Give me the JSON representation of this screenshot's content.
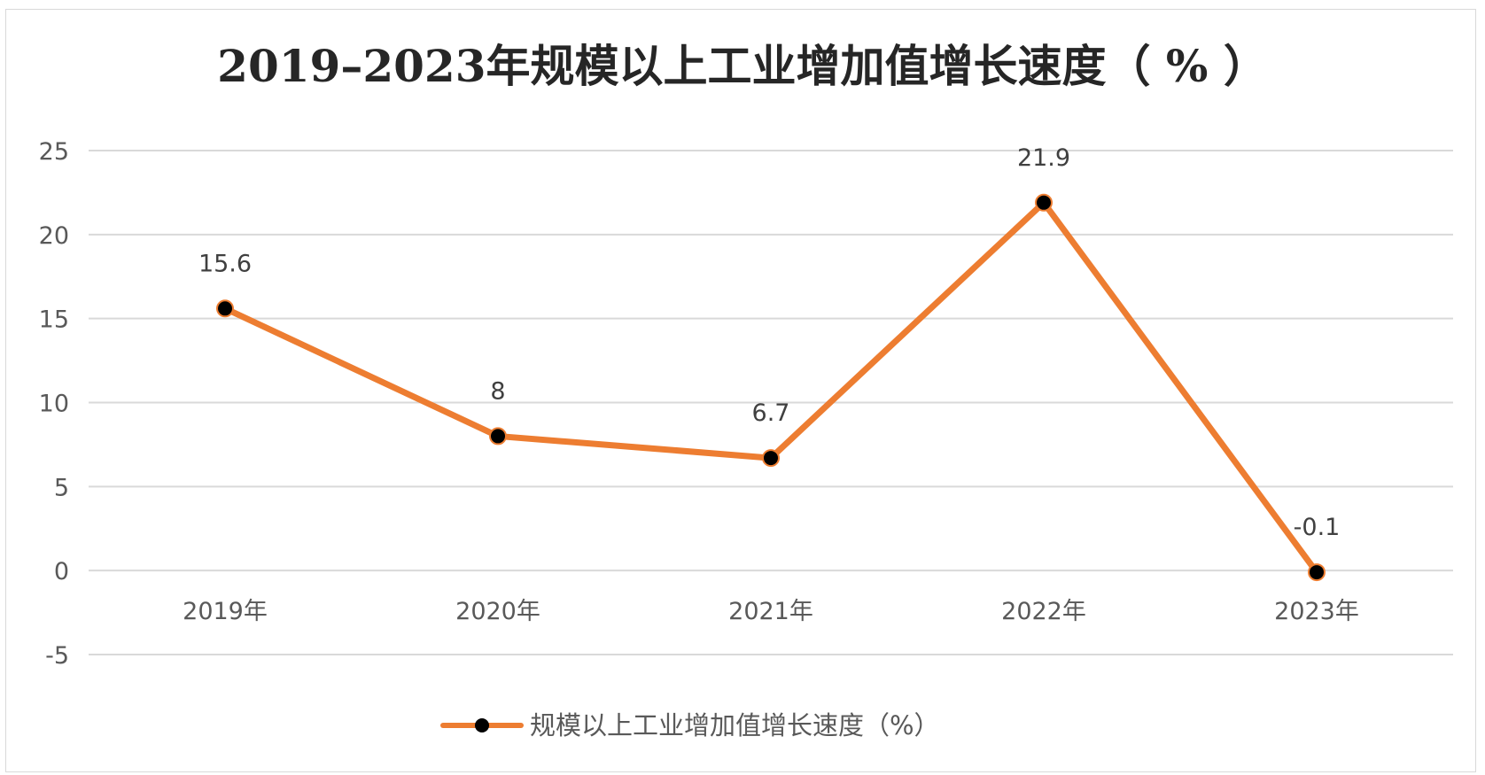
{
  "chart_data": {
    "type": "line",
    "title": "2019–2023年规模以上工业增加值增长速度（ % ）",
    "categories": [
      "2019年",
      "2020年",
      "2021年",
      "2022年",
      "2023年"
    ],
    "series": [
      {
        "name": "规模以上工业增加值增长速度（%）",
        "values": [
          15.6,
          8,
          6.7,
          21.9,
          -0.1
        ],
        "data_labels": [
          "15.6",
          "8",
          "6.7",
          "21.9",
          "-0.1"
        ],
        "color": "#ED7D31",
        "marker_color": "#000000"
      }
    ],
    "y_ticks": [
      "25",
      "20",
      "15",
      "10",
      "5",
      "0",
      "-5"
    ],
    "ylim": [
      -5,
      25
    ],
    "grid": true,
    "legend_position": "bottom"
  }
}
